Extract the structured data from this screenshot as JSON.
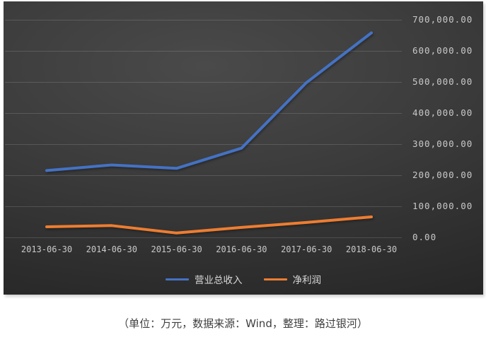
{
  "page": {
    "caption": "（单位：万元，数据来源：Wind，整理：路过银河）"
  },
  "colors": {
    "panel_background": "#3c3c3c",
    "gridline": "#4f4f4f",
    "axis_label": "#c9c9c9",
    "legend_label": "#d9d9d9",
    "caption_text": "#3f3f3f",
    "series_revenue": "#4472c4",
    "series_net_profit": "#ed7d31"
  },
  "chart_data": {
    "type": "line",
    "title": "",
    "unit": "万元",
    "categories": [
      "2013-06-30",
      "2014-06-30",
      "2015-06-30",
      "2016-06-30",
      "2017-06-30",
      "2018-06-30"
    ],
    "series": [
      {
        "name": "营业总收入",
        "color": "#4472c4",
        "values": [
          215000,
          233000,
          222000,
          287000,
          498000,
          658000
        ]
      },
      {
        "name": "净利润",
        "color": "#ed7d31",
        "values": [
          34000,
          38000,
          14000,
          32000,
          48000,
          66000
        ]
      }
    ],
    "y_axis": {
      "side": "right",
      "min": 0,
      "max": 700000,
      "tick_interval": 100000,
      "tick_values": [
        700000,
        600000,
        500000,
        400000,
        300000,
        200000,
        100000,
        0
      ],
      "tick_labels": [
        "700,000.00",
        "600,000.00",
        "500,000.00",
        "400,000.00",
        "300,000.00",
        "200,000.00",
        "100,000.00",
        "0.00"
      ]
    },
    "grid": true,
    "legend_position": "bottom",
    "plot_background": "dark-gradient"
  }
}
